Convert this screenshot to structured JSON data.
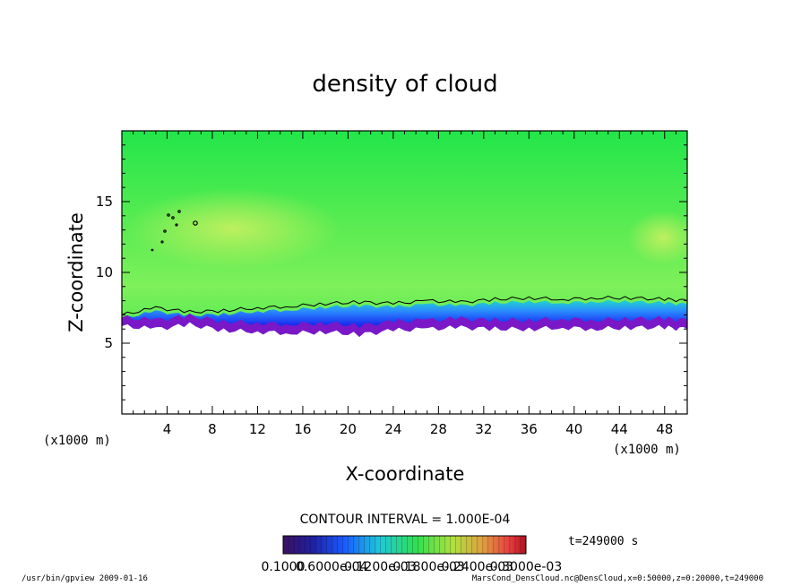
{
  "chart_data": {
    "type": "heatmap",
    "title": "density of cloud",
    "xlabel": "X-coordinate",
    "ylabel": "Z-coordinate",
    "x_unit_left": "(x1000 m)",
    "x_unit_right": "(x1000 m)",
    "xlim": [
      0,
      50
    ],
    "ylim": [
      0,
      20
    ],
    "x_ticks": [
      4,
      8,
      12,
      16,
      20,
      24,
      28,
      32,
      36,
      40,
      44,
      48
    ],
    "y_ticks": [
      5,
      10,
      15
    ],
    "x_tick_labels": [
      "4",
      "8",
      "12",
      "16",
      "20",
      "24",
      "28",
      "32",
      "36",
      "40",
      "44",
      "48"
    ],
    "y_tick_labels": [
      "5",
      "10",
      "15"
    ],
    "cloud_base_z": [
      6.2,
      6.0,
      6.3,
      5.9,
      5.8,
      5.7,
      5.8,
      5.6,
      5.9,
      6.0,
      6.1,
      6.0,
      6.0,
      6.1,
      6.0,
      6.1,
      6.1,
      6.0
    ],
    "contour_top_z": [
      7.0,
      7.5,
      7.2,
      7.3,
      7.5,
      7.6,
      7.8,
      7.9,
      7.8,
      8.0,
      7.9,
      8.1,
      8.2,
      8.1,
      8.2,
      8.2,
      8.1,
      8.0
    ],
    "profile_x": [
      0,
      3,
      6,
      9,
      12,
      15,
      18,
      21,
      24,
      27,
      30,
      33,
      36,
      39,
      42,
      45,
      48,
      50
    ],
    "contour_interval": "CONTOUR INTERVAL = 1.000E-04",
    "time_label": "t=249000 s",
    "colorbar_labels": [
      "0.1000",
      "0.6000e-04",
      "0.1200e-03",
      "0.1800e-03",
      "0.2400e-03",
      "0.3000e-03"
    ],
    "colors": {
      "background_field": "#33e84a",
      "core": "#aef05a",
      "blue_layer": "#2848ff",
      "purple_base": "#7a18c8"
    }
  },
  "footer": {
    "left": "/usr/bin/gpview   2009-01-16",
    "right": "MarsCond_DensCloud.nc@DensCloud,x=0:50000,z=0:20000,t=249000"
  }
}
